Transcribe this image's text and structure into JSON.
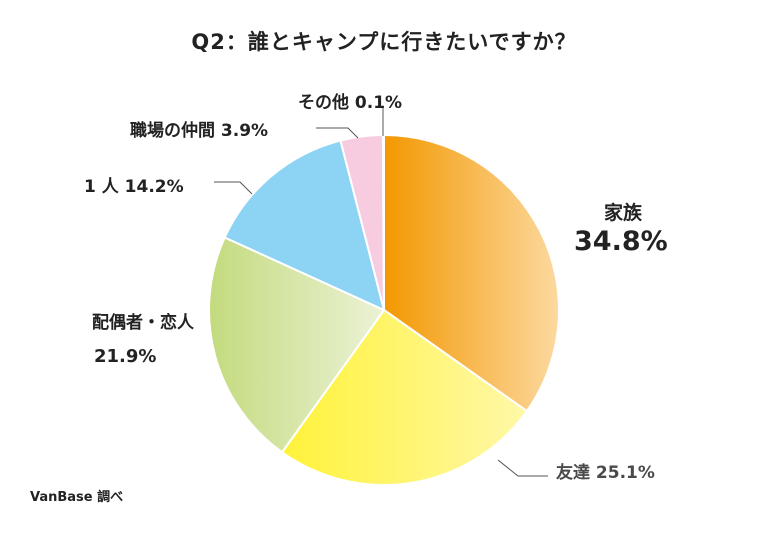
{
  "chart_data": {
    "type": "pie",
    "title": "Q2：誰とキャンプに行きたいですか？",
    "slices": [
      {
        "name": "家族",
        "value": 34.8,
        "value_label": "34.8%",
        "color_start": "#f39800",
        "color_end": "#fcd9a0"
      },
      {
        "name": "友達",
        "value": 25.1,
        "value_label": "25.1%",
        "color_start": "#fff23a",
        "color_end": "#fff8a8"
      },
      {
        "name": "配偶者・恋人",
        "value": 21.9,
        "value_label": "21.9%",
        "color_start": "#c3db7e",
        "color_end": "#ecf2d6"
      },
      {
        "name": "1 人",
        "value": 14.2,
        "value_label": "14.2%",
        "color_start": "#8dd3f4",
        "color_end": "#8dd3f4"
      },
      {
        "name": "職場の仲間",
        "value": 3.9,
        "value_label": "3.9%",
        "color_start": "#f8cce0",
        "color_end": "#f8cce0"
      },
      {
        "name": "その他",
        "value": 0.1,
        "value_label": "0.1%",
        "color_start": "#cfcfcf",
        "color_end": "#cfcfcf"
      }
    ]
  },
  "source_note": "VanBase 調べ"
}
